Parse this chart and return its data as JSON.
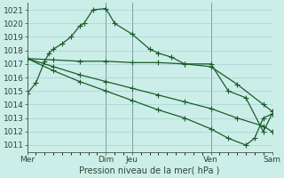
{
  "bg_color": "#cceee8",
  "grid_color": "#99cccc",
  "line_color": "#1a5c2a",
  "xlabel": "Pression niveau de la mer( hPa )",
  "ylim": [
    1010.5,
    1021.5
  ],
  "yticks": [
    1011,
    1012,
    1013,
    1014,
    1015,
    1016,
    1017,
    1018,
    1019,
    1020,
    1021
  ],
  "xlim": [
    0,
    56
  ],
  "xtick_positions": [
    0,
    18,
    24,
    42,
    56
  ],
  "xtick_labels": [
    "Mer",
    "Dim",
    "Jeu",
    "Ven",
    "Sam"
  ],
  "vline_positions": [
    0,
    18,
    24,
    42,
    56
  ],
  "line1_x": [
    0,
    2,
    4,
    5,
    6,
    8,
    10,
    12,
    13,
    15,
    18,
    20,
    24,
    28,
    30,
    33,
    36,
    42,
    46,
    50,
    54,
    56
  ],
  "line1_y": [
    1014.8,
    1015.6,
    1017.2,
    1017.8,
    1018.1,
    1018.5,
    1019.0,
    1019.8,
    1020.0,
    1021.0,
    1021.1,
    1020.0,
    1019.2,
    1018.1,
    1017.8,
    1017.5,
    1017.0,
    1017.0,
    1015.0,
    1014.5,
    1012.0,
    1013.3
  ],
  "line2_x": [
    0,
    6,
    12,
    18,
    24,
    30,
    36,
    42,
    48,
    54,
    56
  ],
  "line2_y": [
    1017.4,
    1017.3,
    1017.2,
    1017.2,
    1017.1,
    1017.1,
    1017.0,
    1016.8,
    1015.5,
    1014.0,
    1013.5
  ],
  "line3_x": [
    0,
    6,
    12,
    18,
    24,
    30,
    36,
    42,
    48,
    54,
    56
  ],
  "line3_y": [
    1017.4,
    1016.8,
    1016.2,
    1015.7,
    1015.2,
    1014.7,
    1014.2,
    1013.7,
    1013.0,
    1012.4,
    1012.0
  ],
  "line4_x": [
    0,
    6,
    12,
    18,
    24,
    30,
    36,
    42,
    46,
    50,
    52,
    54,
    56
  ],
  "line4_y": [
    1017.4,
    1016.5,
    1015.7,
    1015.0,
    1014.3,
    1013.6,
    1013.0,
    1012.2,
    1011.5,
    1011.0,
    1011.5,
    1013.0,
    1013.3
  ]
}
